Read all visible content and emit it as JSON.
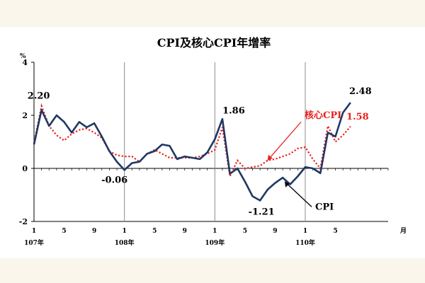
{
  "chart_data": {
    "type": "line",
    "title": "CPI及核心CPI年增率",
    "y_unit": "%",
    "x_unit": "月",
    "ylim": [
      -2,
      4
    ],
    "y_ticks": [
      "4",
      "2",
      "0",
      "-2"
    ],
    "x_tick_labels": [
      "1",
      "5",
      "9",
      "1",
      "5",
      "9",
      "1",
      "5",
      "9",
      "1",
      "5"
    ],
    "year_labels": [
      "107年",
      "108年",
      "109年",
      "110年"
    ],
    "grid": false,
    "colors": {
      "cpi": "#1f3864",
      "core": "#e8211c"
    },
    "series": [
      {
        "name": "CPI",
        "values": [
          0.9,
          2.2,
          1.6,
          2.0,
          1.75,
          1.35,
          1.75,
          1.55,
          1.7,
          1.2,
          0.65,
          0.25,
          -0.06,
          0.2,
          0.25,
          0.55,
          0.65,
          0.9,
          0.85,
          0.35,
          0.45,
          0.4,
          0.35,
          0.6,
          1.1,
          1.86,
          -0.2,
          0.0,
          -0.5,
          -1.05,
          -1.21,
          -0.8,
          -0.55,
          -0.35,
          -0.6,
          -0.3,
          0.05,
          0.0,
          -0.18,
          1.35,
          1.2,
          2.1,
          2.48
        ]
      },
      {
        "name": "核心CPI",
        "values": [
          0.95,
          2.35,
          1.6,
          1.25,
          1.05,
          1.3,
          1.45,
          1.5,
          1.35,
          1.15,
          0.65,
          0.5,
          0.45,
          0.45,
          0.25,
          0.55,
          0.7,
          0.55,
          0.4,
          0.4,
          0.4,
          0.4,
          0.45,
          0.55,
          0.7,
          1.55,
          -0.3,
          0.3,
          0.0,
          0.05,
          0.1,
          0.3,
          0.35,
          0.45,
          0.55,
          0.75,
          0.8,
          0.35,
          0.0,
          1.6,
          1.0,
          1.25,
          1.58
        ]
      }
    ],
    "annotations": [
      {
        "text": "2.20",
        "series": "CPI",
        "index": 1
      },
      {
        "text": "-0.06",
        "series": "CPI",
        "index": 12
      },
      {
        "text": "1.86",
        "series": "CPI",
        "index": 25
      },
      {
        "text": "-1.21",
        "series": "CPI",
        "index": 30
      },
      {
        "text": "2.48",
        "series": "CPI",
        "index": 42
      },
      {
        "text": "1.58",
        "series": "核心CPI",
        "index": 42
      }
    ],
    "series_labels": {
      "cpi": "CPI",
      "core": "核心CPI"
    }
  }
}
